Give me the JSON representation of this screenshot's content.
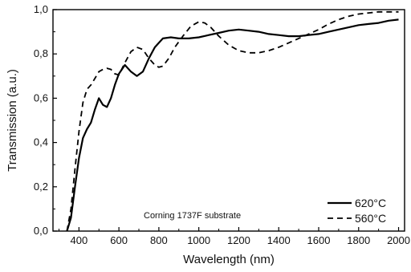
{
  "chart_data": {
    "type": "line",
    "xlabel": "Wavelength (nm)",
    "ylabel": "Transmission (a.u.)",
    "xlim": [
      270,
      2030
    ],
    "ylim": [
      0.0,
      1.0
    ],
    "xticks": [
      400,
      600,
      800,
      1000,
      1200,
      1400,
      1600,
      1800,
      2000
    ],
    "yticks": [
      0.0,
      0.2,
      0.4,
      0.6,
      0.8,
      1.0
    ],
    "ytick_labels": [
      "0,0",
      "0,2",
      "0,4",
      "0,6",
      "0,8",
      "1,0"
    ],
    "grid": false,
    "legend_position": "bottom-right",
    "annotation": "Corning 1737F substrate",
    "series": [
      {
        "name": "620°C",
        "style": "solid",
        "color": "#000000",
        "x": [
          340,
          360,
          380,
          400,
          420,
          440,
          460,
          480,
          500,
          520,
          540,
          560,
          580,
          600,
          630,
          660,
          690,
          720,
          750,
          780,
          820,
          860,
          900,
          950,
          1000,
          1050,
          1100,
          1150,
          1200,
          1250,
          1300,
          1350,
          1400,
          1450,
          1500,
          1550,
          1600,
          1650,
          1700,
          1750,
          1800,
          1850,
          1900,
          1950,
          2000
        ],
        "y": [
          0.0,
          0.06,
          0.2,
          0.33,
          0.42,
          0.46,
          0.49,
          0.55,
          0.6,
          0.57,
          0.56,
          0.6,
          0.66,
          0.71,
          0.75,
          0.72,
          0.7,
          0.72,
          0.78,
          0.83,
          0.87,
          0.875,
          0.87,
          0.87,
          0.875,
          0.885,
          0.895,
          0.905,
          0.91,
          0.905,
          0.9,
          0.89,
          0.885,
          0.88,
          0.88,
          0.885,
          0.89,
          0.9,
          0.91,
          0.92,
          0.93,
          0.935,
          0.94,
          0.95,
          0.955
        ]
      },
      {
        "name": "560°C",
        "style": "dashed",
        "color": "#000000",
        "x": [
          340,
          360,
          380,
          400,
          420,
          440,
          460,
          480,
          500,
          520,
          540,
          560,
          580,
          600,
          630,
          660,
          690,
          720,
          750,
          780,
          800,
          820,
          850,
          880,
          920,
          960,
          1000,
          1030,
          1060,
          1100,
          1150,
          1200,
          1250,
          1300,
          1350,
          1400,
          1450,
          1500,
          1550,
          1600,
          1650,
          1700,
          1750,
          1800,
          1850,
          1900,
          1950,
          2000
        ],
        "y": [
          0.0,
          0.1,
          0.28,
          0.45,
          0.58,
          0.64,
          0.66,
          0.69,
          0.72,
          0.73,
          0.735,
          0.73,
          0.71,
          0.705,
          0.76,
          0.81,
          0.83,
          0.82,
          0.78,
          0.75,
          0.74,
          0.745,
          0.78,
          0.83,
          0.88,
          0.925,
          0.945,
          0.94,
          0.92,
          0.88,
          0.84,
          0.815,
          0.805,
          0.805,
          0.815,
          0.83,
          0.85,
          0.87,
          0.89,
          0.91,
          0.935,
          0.955,
          0.97,
          0.98,
          0.985,
          0.99,
          0.99,
          0.99
        ]
      }
    ]
  }
}
